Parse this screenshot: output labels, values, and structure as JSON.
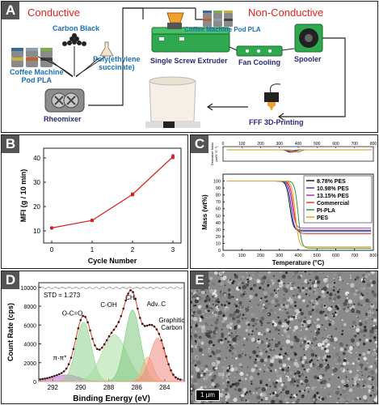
{
  "panelA": {
    "label": "A",
    "conductive": "Conductive",
    "non_conductive": "Non-Conductive",
    "carbon_black": "Carbon Black",
    "coffee_pod_pla_left": "Coffee Machine\nPod PLA",
    "poly_es": "Poly(ethylene\nsuccinate)",
    "coffee_pod_pla_top": "Coffee Machine Pod PLA",
    "rheomixer": "Rheomixer",
    "extruder": "Single Screw Extruder",
    "fan_cooling": "Fan Cooling",
    "spooler": "Spooler",
    "fff": "FFF 3D-Printing",
    "colors": {
      "red": "#e8221b",
      "blue": "#1a6fb5",
      "navy": "#2a2a7a",
      "green": "#2fa84f"
    }
  },
  "panelB": {
    "label": "B",
    "chart_data": {
      "type": "line",
      "xlabel": "Cycle Number",
      "ylabel": "MFI (g / 10 min)",
      "x": [
        0,
        1,
        2,
        3
      ],
      "values": [
        11.2,
        14.3,
        25.0,
        40.5
      ],
      "errors": [
        0.3,
        0.4,
        0.6,
        0.8
      ],
      "xlim": [
        -0.2,
        3.2
      ],
      "ylim": [
        5,
        44
      ],
      "xticks": [
        "0",
        "1",
        "2",
        "3"
      ],
      "yticks": [
        "10",
        "20",
        "30",
        "40"
      ],
      "color": "#d62020"
    }
  },
  "panelC": {
    "label": "C",
    "chart_data": {
      "type": "line",
      "xlabel": "Temperature (°C)",
      "ylabel": "Mass (wt%)",
      "top_ylabel": "Derivative Mass\n(wt% °C⁻¹)",
      "xticks": [
        "0",
        "100",
        "200",
        "300",
        "400",
        "500",
        "600",
        "700",
        "800"
      ],
      "yticks": [
        "0",
        "10",
        "20",
        "30",
        "40",
        "50",
        "60",
        "70",
        "80",
        "90",
        "100"
      ],
      "xlim": [
        0,
        800
      ],
      "ylim": [
        0,
        110
      ],
      "legend_position": "top-right",
      "series": [
        {
          "name": "8.78% PES",
          "color": "#1a1a1a",
          "onset": 345,
          "residue": 29
        },
        {
          "name": "10.98% PES",
          "color": "#3a3ad6",
          "onset": 352,
          "residue": 27
        },
        {
          "name": "13.15% PES",
          "color": "#b03ac0",
          "onset": 358,
          "residue": 32
        },
        {
          "name": "Commercial",
          "color": "#e83a2a",
          "onset": 365,
          "residue": 24
        },
        {
          "name": "PI-PLA",
          "color": "#2f9a3a",
          "onset": 390,
          "residue": 3
        },
        {
          "name": "PES",
          "color": "#f0a020",
          "onset": 375,
          "residue": 5
        }
      ]
    }
  },
  "panelD": {
    "label": "D",
    "std_text": "STD = 1.273",
    "annotations": [
      "O-C=O",
      "C-OH",
      "CHₓ",
      "Adv. C",
      "Graphitic\nCarbon",
      "π-π*"
    ],
    "chart_data": {
      "type": "scatter",
      "xlabel": "Binding Energy (eV)",
      "ylabel": "Count Rate (cps)",
      "xticks": [
        "292",
        "290",
        "288",
        "286",
        "284"
      ],
      "yticks": [
        "0",
        "2000",
        "4000",
        "6000",
        "8000",
        "10000"
      ],
      "xlim": [
        293,
        282.6
      ],
      "ylim": [
        0,
        10500
      ],
      "peaks": [
        {
          "name": "π-π*",
          "center": 291.0,
          "height": 700,
          "width": 0.9,
          "color": "#c06ad0"
        },
        {
          "name": "O-C=O",
          "center": 289.8,
          "height": 6300,
          "width": 0.55,
          "color": "#8fd08f"
        },
        {
          "name": "C-OH",
          "center": 287.6,
          "height": 4950,
          "width": 0.9,
          "color": "#a8dca0"
        },
        {
          "name": "CHₓ",
          "center": 286.3,
          "height": 7600,
          "width": 0.55,
          "color": "#7ec87e"
        },
        {
          "name": "Adv. C",
          "center": 285.2,
          "height": 2600,
          "width": 0.4,
          "color": "#f4b080"
        },
        {
          "name": "Graphitic Carbon",
          "center": 284.5,
          "height": 4600,
          "width": 0.55,
          "color": "#f08a80"
        }
      ]
    }
  },
  "panelE": {
    "label": "E",
    "scale_bar": "1 μm"
  }
}
